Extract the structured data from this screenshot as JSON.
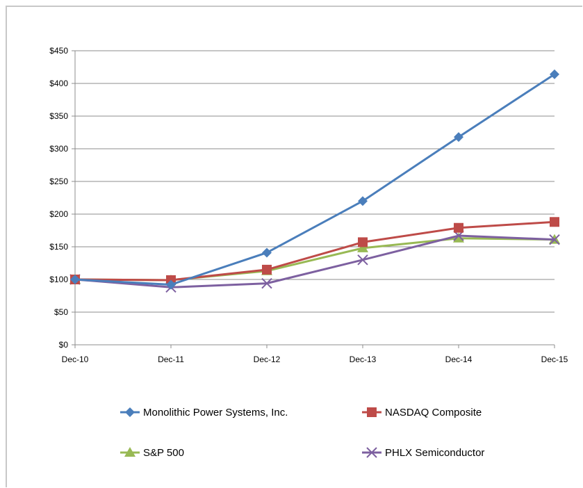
{
  "chart_data": {
    "type": "line",
    "title": "",
    "xlabel": "",
    "ylabel": "",
    "categories": [
      "Dec-10",
      "Dec-11",
      "Dec-12",
      "Dec-13",
      "Dec-14",
      "Dec-15"
    ],
    "ylim": [
      0,
      450
    ],
    "yticks": [
      "$0",
      "$50",
      "$100",
      "$150",
      "$200",
      "$250",
      "$300",
      "$350",
      "$400",
      "$450"
    ],
    "grid": true,
    "legend_position": "bottom",
    "series": [
      {
        "name": "Monolithic Power Systems, Inc.",
        "color": "#4a7ebb",
        "marker": "diamond",
        "values": [
          100,
          92,
          141,
          220,
          318,
          414
        ]
      },
      {
        "name": "NASDAQ Composite",
        "color": "#be4b48",
        "marker": "square",
        "values": [
          100,
          99,
          115,
          157,
          179,
          188
        ]
      },
      {
        "name": "S&P 500",
        "color": "#98b954",
        "marker": "triangle",
        "values": [
          100,
          99,
          113,
          148,
          163,
          161
        ]
      },
      {
        "name": "PHLX Semiconductor",
        "color": "#7d60a0",
        "marker": "x",
        "values": [
          100,
          88,
          94,
          130,
          167,
          161
        ]
      }
    ]
  }
}
